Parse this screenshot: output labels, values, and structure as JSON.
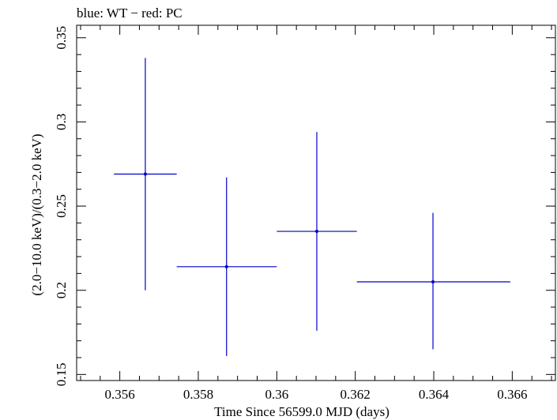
{
  "chart_data": {
    "type": "scatter",
    "title": "blue: WT − red: PC",
    "xlabel": "Time Since 56599.0 MJD (days)",
    "ylabel": "(2.0−10.0 keV)/(0.3−2.0 keV)",
    "xlim": [
      0.3549,
      0.3671
    ],
    "ylim": [
      0.1464,
      0.3574
    ],
    "x_ticks": [
      0.356,
      0.358,
      0.36,
      0.362,
      0.364,
      0.366
    ],
    "x_tick_labels": [
      "0.356",
      "0.358",
      "0.36",
      "0.362",
      "0.364",
      "0.366"
    ],
    "y_ticks": [
      0.15,
      0.2,
      0.25,
      0.3,
      0.35
    ],
    "y_tick_labels": [
      "0.15",
      "0.2",
      "0.25",
      "0.3",
      "0.35"
    ],
    "grid": false,
    "series": [
      {
        "name": "WT",
        "color": "#0000cc",
        "points": [
          {
            "x": 0.35665,
            "xlo": 0.35585,
            "xhi": 0.35745,
            "y": 0.269,
            "ylo": 0.2,
            "yhi": 0.338
          },
          {
            "x": 0.35872,
            "xlo": 0.35745,
            "xhi": 0.36,
            "y": 0.214,
            "ylo": 0.161,
            "yhi": 0.267
          },
          {
            "x": 0.36102,
            "xlo": 0.36,
            "xhi": 0.36204,
            "y": 0.235,
            "ylo": 0.176,
            "yhi": 0.294
          },
          {
            "x": 0.36398,
            "xlo": 0.36204,
            "xhi": 0.36595,
            "y": 0.205,
            "ylo": 0.165,
            "yhi": 0.246
          }
        ]
      }
    ]
  }
}
